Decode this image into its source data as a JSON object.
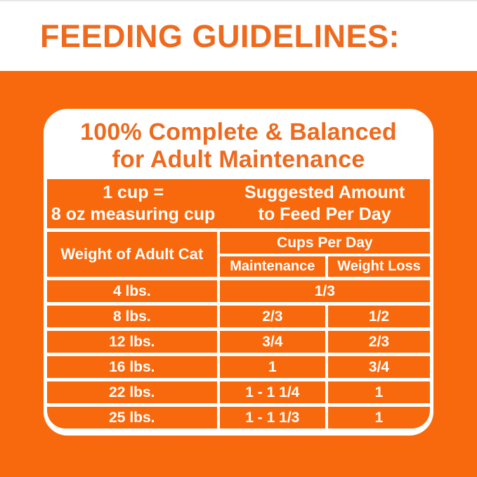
{
  "page": {
    "background_color": "#F8690D",
    "accent_text_color": "#ED6A1F",
    "table_text_color": "#FFFFFF"
  },
  "header": {
    "title": "FEEDING GUIDELINES:"
  },
  "card": {
    "title_line1": "100% Complete & Balanced",
    "title_line2": "for Adult Maintenance",
    "info": {
      "left_line1": "1 cup =",
      "left_line2": "8 oz measuring cup",
      "right_line1": "Suggested Amount",
      "right_line2": "to Feed Per Day"
    },
    "table": {
      "weight_column_header": "Weight of Adult Cat",
      "group_header": "Cups Per Day",
      "maintenance_header": "Maintenance",
      "weight_loss_header": "Weight Loss",
      "rows": [
        {
          "weight": "4 lbs.",
          "amount": "1/3"
        },
        {
          "weight": "8 lbs.",
          "maintenance": "2/3",
          "weight_loss": "1/2"
        },
        {
          "weight": "12 lbs.",
          "maintenance": "3/4",
          "weight_loss": "2/3"
        },
        {
          "weight": "16 lbs.",
          "maintenance": "1",
          "weight_loss": "3/4"
        },
        {
          "weight": "22 lbs.",
          "maintenance": "1 - 1 1/4",
          "weight_loss": "1"
        },
        {
          "weight": "25 lbs.",
          "maintenance": "1 - 1 1/3",
          "weight_loss": "1"
        }
      ]
    }
  }
}
